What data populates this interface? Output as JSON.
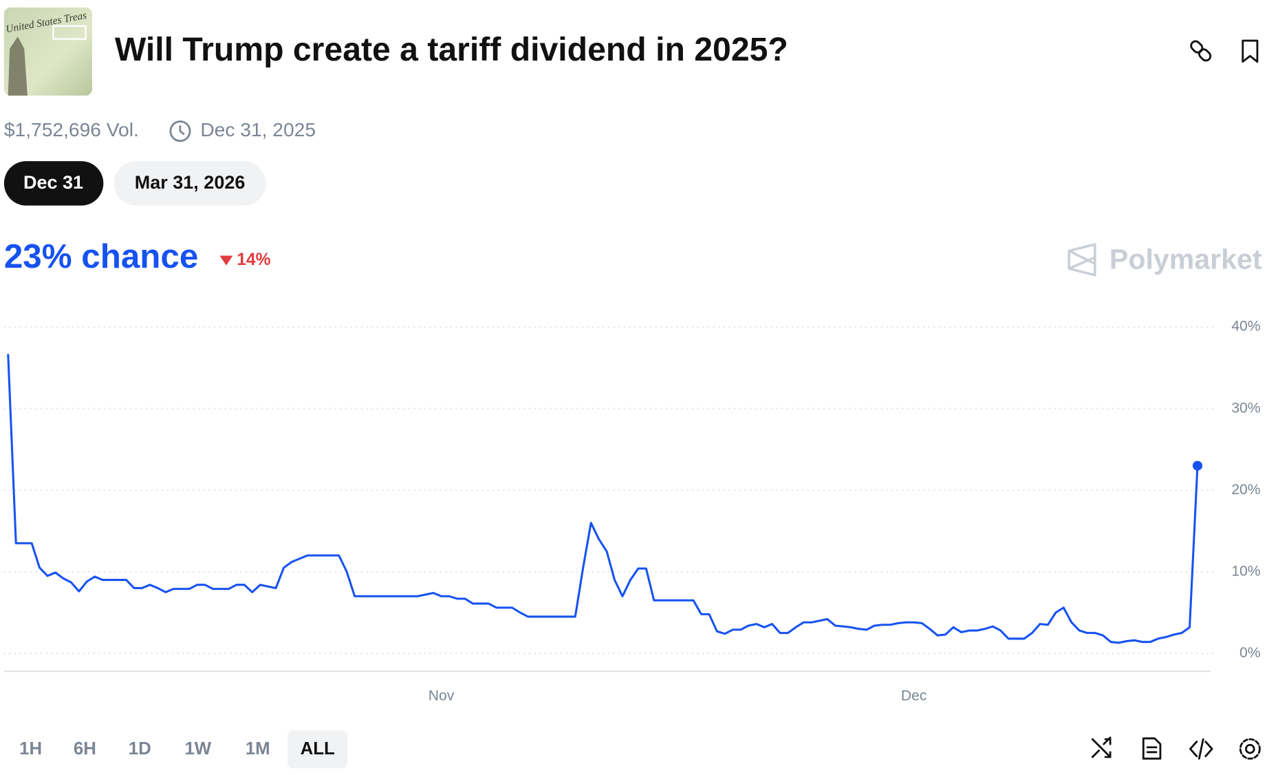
{
  "header": {
    "title": "Will Trump create a tariff dividend in 2025?",
    "volume": "$1,752,696 Vol.",
    "end_date": "Dec 31, 2025"
  },
  "date_tabs": [
    "Dec 31",
    "Mar 31, 2026"
  ],
  "summary": {
    "chance": "23% chance",
    "change": "14%",
    "brand": "Polymarket"
  },
  "time_filters": [
    "1H",
    "6H",
    "1D",
    "1W",
    "1M",
    "ALL"
  ],
  "chart_data": {
    "type": "line",
    "categories": [
      null,
      null,
      null,
      null,
      null,
      null,
      null,
      null,
      null,
      null,
      null,
      null,
      null,
      null,
      null,
      null,
      null,
      null,
      null,
      null,
      null,
      null,
      null,
      null,
      null,
      null,
      null,
      null,
      null,
      null,
      null,
      null,
      null,
      null,
      null,
      null,
      null,
      null,
      null,
      null,
      null,
      null,
      null,
      null,
      null,
      null,
      null,
      null,
      null,
      null,
      null,
      null,
      null,
      null,
      null,
      "Nov",
      null,
      null,
      null,
      null,
      null,
      null,
      null,
      null,
      null,
      null,
      null,
      null,
      null,
      null,
      null,
      null,
      null,
      null,
      null,
      null,
      null,
      null,
      null,
      null,
      null,
      null,
      null,
      null,
      null,
      null,
      null,
      null,
      null,
      null,
      null,
      null,
      null,
      null,
      null,
      null,
      null,
      null,
      null,
      null,
      null,
      null,
      null,
      null,
      null,
      null,
      null,
      null,
      null,
      null,
      null,
      null,
      null,
      null,
      null,
      "Dec",
      null,
      null,
      null,
      null,
      null,
      null,
      null,
      null,
      null,
      null,
      null,
      null,
      null,
      null,
      null,
      null,
      null,
      null,
      null,
      null,
      null,
      null,
      null,
      null,
      null,
      null,
      null,
      null,
      null,
      null,
      null,
      null,
      null,
      null,
      null,
      null
    ],
    "series": [
      {
        "color": "#1652f0",
        "values": [
          36.7,
          13.5,
          13.5,
          13.5,
          10.5,
          9.5,
          9.9,
          9.2,
          8.7,
          7.6,
          8.8,
          9.4,
          9.0,
          9.0,
          9.0,
          9.0,
          8.0,
          8.0,
          8.4,
          8.0,
          7.5,
          7.9,
          7.9,
          7.9,
          8.4,
          8.4,
          7.9,
          7.9,
          7.9,
          8.4,
          8.4,
          7.5,
          8.4,
          8.2,
          8.0,
          10.5,
          11.2,
          11.6,
          12.0,
          12.0,
          12.0,
          12.0,
          12.0,
          10.0,
          7.0,
          7.0,
          7.0,
          7.0,
          7.0,
          7.0,
          7.0,
          7.0,
          7.0,
          7.2,
          7.4,
          7.0,
          7.0,
          6.7,
          6.7,
          6.1,
          6.1,
          6.1,
          5.6,
          5.6,
          5.6,
          5.0,
          4.5,
          4.5,
          4.5,
          4.5,
          4.5,
          4.5,
          4.5,
          10.5,
          16.0,
          14.0,
          12.5,
          9.0,
          7.0,
          9.0,
          10.4,
          10.4,
          6.5,
          6.5,
          6.5,
          6.5,
          6.5,
          6.5,
          4.8,
          4.8,
          2.7,
          2.4,
          2.9,
          2.9,
          3.4,
          3.6,
          3.2,
          3.6,
          2.5,
          2.5,
          3.2,
          3.8,
          3.8,
          4.0,
          4.2,
          3.4,
          3.3,
          3.2,
          3.0,
          2.9,
          3.4,
          3.5,
          3.5,
          3.7,
          3.8,
          3.8,
          3.7,
          3.0,
          2.2,
          2.3,
          3.2,
          2.6,
          2.8,
          2.8,
          3.0,
          3.3,
          2.8,
          1.8,
          1.8,
          1.8,
          2.5,
          3.6,
          3.5,
          5.0,
          5.6,
          3.8,
          2.8,
          2.5,
          2.5,
          2.2,
          1.4,
          1.3,
          1.5,
          1.6,
          1.4,
          1.4,
          1.8,
          2.0,
          2.3,
          2.5,
          3.2,
          23
        ]
      }
    ],
    "ylim": [
      -2.2,
      42.4
    ],
    "yticks": [
      {
        "value": 0,
        "label": "0%"
      },
      {
        "value": 10,
        "label": "10%"
      },
      {
        "value": 20,
        "label": "20%"
      },
      {
        "value": 30,
        "label": "30%"
      },
      {
        "value": 40,
        "label": "40%"
      }
    ],
    "grid": true
  }
}
